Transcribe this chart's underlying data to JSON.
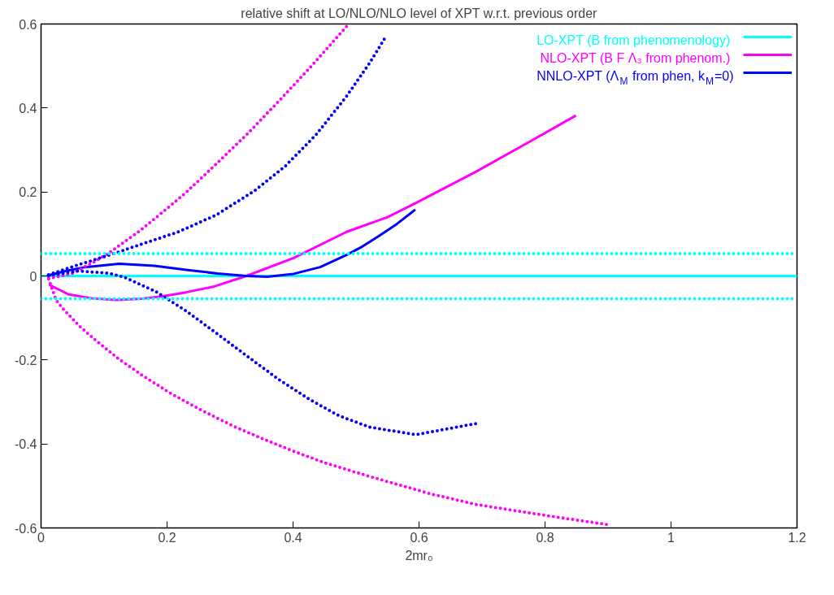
{
  "chart_data": {
    "type": "line",
    "title": "relative shift at LO/NLO/NLO level of XPT w.r.t. previous order",
    "xlabel": "2mr₀",
    "xlim": [
      0,
      1.2
    ],
    "ylim": [
      -0.6,
      0.6
    ],
    "xticks": [
      0,
      0.2,
      0.4,
      0.6,
      0.8,
      1,
      1.2
    ],
    "yticks": [
      -0.6,
      -0.4,
      -0.2,
      0,
      0.2,
      0.4,
      0.6
    ],
    "grid": false,
    "legend": "top right",
    "series": [
      {
        "name": "LO-XPT (B from phenomenology)",
        "color": "#00ffff",
        "line_style": "solid",
        "x": [
          0,
          1.2
        ],
        "values": [
          0,
          0
        ]
      },
      {
        "name": "NLO-XPT (B F Λ₃ from phenom.)",
        "color": "#ff00ff",
        "line_style": "solid",
        "x": [
          0.013,
          0.044,
          0.08,
          0.12,
          0.16,
          0.191,
          0.23,
          0.275,
          0.326,
          0.401,
          0.485,
          0.55,
          0.594,
          0.69,
          0.77,
          0.849
        ],
        "values": [
          -0.021,
          -0.044,
          -0.053,
          -0.057,
          -0.054,
          -0.049,
          -0.039,
          -0.025,
          0,
          0.043,
          0.105,
          0.14,
          0.173,
          0.248,
          0.315,
          0.382
        ]
      },
      {
        "name": "NNLO-XPT (Λ$_{M}$ from phen, k$_{M}$=0)",
        "color": "#0000ff",
        "line_style": "solid",
        "x": [
          0.011,
          0.04,
          0.07,
          0.124,
          0.18,
          0.233,
          0.28,
          0.326,
          0.359,
          0.401,
          0.443,
          0.485,
          0.51,
          0.536,
          0.565,
          0.594
        ],
        "values": [
          0.001,
          0.012,
          0.021,
          0.029,
          0.024,
          0.014,
          0.006,
          0,
          -0.002,
          0.005,
          0.021,
          0.05,
          0.07,
          0.095,
          0.124,
          0.158
        ]
      },
      {
        "color": "#ff00ff",
        "line_style": "dotted",
        "x": [
          0.012,
          0.048,
          0.085,
          0.109,
          0.158,
          0.194,
          0.231,
          0.279,
          0.328,
          0.376,
          0.425,
          0.485
        ],
        "values": [
          -0.006,
          0.005,
          0.034,
          0.056,
          0.109,
          0.153,
          0.2,
          0.268,
          0.339,
          0.414,
          0.493,
          0.594
        ]
      },
      {
        "color": "#ff00ff",
        "line_style": "dotted",
        "x": [
          0.012,
          0.024,
          0.036,
          0.06,
          0.085,
          0.121,
          0.158,
          0.206,
          0.255,
          0.303,
          0.352,
          0.4,
          0.449,
          0.498,
          0.546,
          0.619,
          0.69,
          0.8,
          0.899
        ],
        "values": [
          -0.007,
          -0.058,
          -0.08,
          -0.118,
          -0.151,
          -0.195,
          -0.234,
          -0.28,
          -0.32,
          -0.356,
          -0.388,
          -0.417,
          -0.444,
          -0.467,
          -0.488,
          -0.519,
          -0.544,
          -0.57,
          -0.592
        ]
      },
      {
        "color": "#0000ff",
        "line_style": "dotted",
        "x": [
          0.012,
          0.06,
          0.109,
          0.158,
          0.218,
          0.279,
          0.339,
          0.388,
          0.437,
          0.485,
          0.522,
          0.546
        ],
        "values": [
          0.003,
          0.027,
          0.05,
          0.075,
          0.105,
          0.146,
          0.203,
          0.262,
          0.337,
          0.428,
          0.508,
          0.567
        ]
      },
      {
        "color": "#0000ff",
        "line_style": "dotted",
        "x": [
          0.012,
          0.06,
          0.109,
          0.134,
          0.182,
          0.231,
          0.279,
          0.328,
          0.376,
          0.425,
          0.473,
          0.522,
          0.595,
          0.692
        ],
        "values": [
          0.001,
          0.012,
          0.006,
          -0.004,
          -0.037,
          -0.084,
          -0.137,
          -0.192,
          -0.245,
          -0.293,
          -0.333,
          -0.36,
          -0.378,
          -0.351
        ]
      }
    ],
    "ref_lines": [
      {
        "axis": "y",
        "value": 0.053,
        "color": "#00ffff",
        "line_style": "dotted"
      },
      {
        "axis": "y",
        "value": -0.054,
        "color": "#00ffff",
        "line_style": "dotted"
      }
    ]
  }
}
